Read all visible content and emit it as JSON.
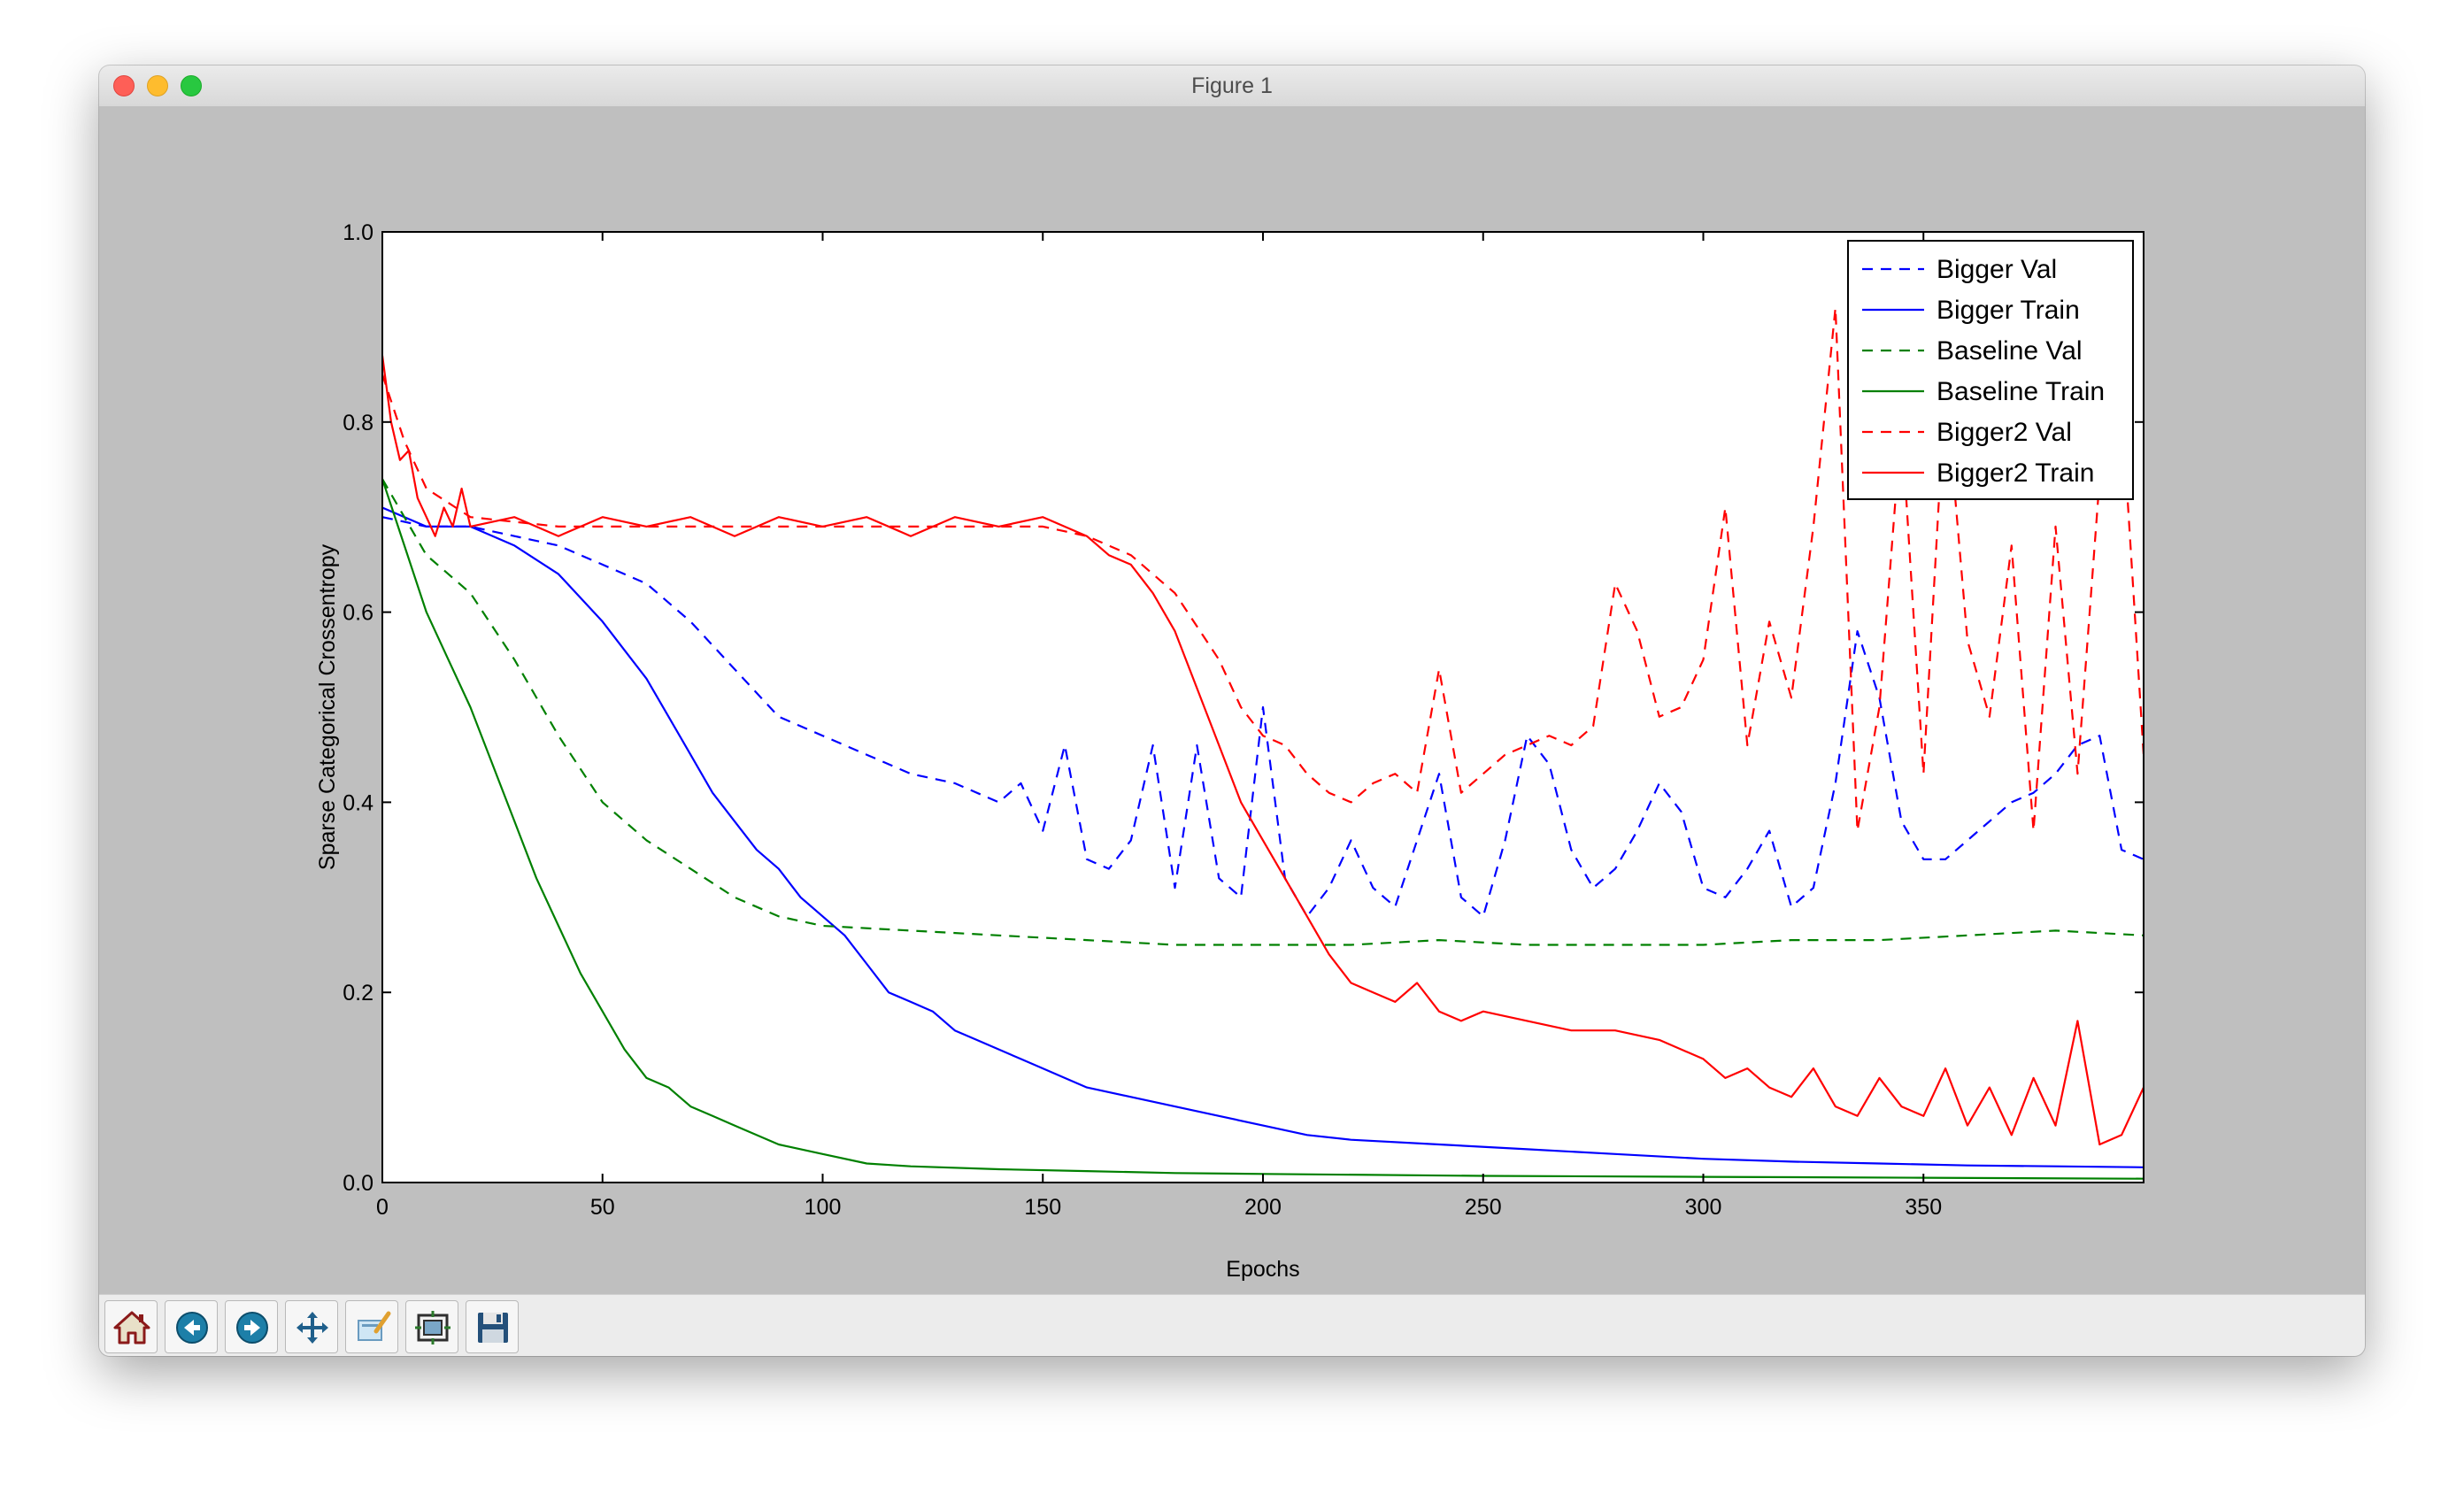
{
  "window": {
    "title": "Figure 1"
  },
  "toolbar": {
    "buttons": [
      {
        "name": "home-button",
        "icon": "home-icon"
      },
      {
        "name": "back-button",
        "icon": "back-arrow-icon"
      },
      {
        "name": "forward-button",
        "icon": "forward-arrow-icon"
      },
      {
        "name": "pan-button",
        "icon": "move-icon"
      },
      {
        "name": "zoom-button",
        "icon": "zoom-rect-icon"
      },
      {
        "name": "subplots-button",
        "icon": "subplots-icon"
      },
      {
        "name": "save-button",
        "icon": "floppy-disk-icon"
      }
    ]
  },
  "chart_data": {
    "type": "line",
    "title": "",
    "xlabel": "Epochs",
    "ylabel": "Sparse Categorical Crossentropy",
    "xlim": [
      0,
      400
    ],
    "ylim": [
      0,
      1.0
    ],
    "xticks": [
      0,
      50,
      100,
      150,
      200,
      250,
      300,
      350
    ],
    "xtick_labels": [
      "0",
      "50",
      "100",
      "150",
      "200",
      "250",
      "300",
      "350"
    ],
    "yticks": [
      0.0,
      0.2,
      0.4,
      0.6,
      0.8,
      1.0
    ],
    "ytick_labels": [
      "0.0",
      "0.2",
      "0.4",
      "0.6",
      "0.8",
      "1.0"
    ],
    "grid": false,
    "legend_position": "top-right",
    "series": [
      {
        "name": "Bigger Val",
        "color": "#0000ff",
        "style": "dashed",
        "x": [
          0,
          10,
          20,
          30,
          40,
          50,
          60,
          70,
          80,
          90,
          100,
          110,
          120,
          130,
          140,
          145,
          150,
          155,
          160,
          165,
          170,
          175,
          180,
          185,
          190,
          195,
          200,
          205,
          210,
          215,
          220,
          225,
          230,
          235,
          240,
          245,
          250,
          255,
          260,
          265,
          270,
          275,
          280,
          285,
          290,
          295,
          300,
          305,
          310,
          315,
          320,
          325,
          330,
          335,
          340,
          345,
          350,
          355,
          360,
          365,
          370,
          375,
          380,
          385,
          390,
          395,
          400
        ],
        "y": [
          0.7,
          0.69,
          0.69,
          0.68,
          0.67,
          0.65,
          0.63,
          0.59,
          0.54,
          0.49,
          0.47,
          0.45,
          0.43,
          0.42,
          0.4,
          0.42,
          0.37,
          0.46,
          0.34,
          0.33,
          0.36,
          0.46,
          0.31,
          0.46,
          0.32,
          0.3,
          0.5,
          0.32,
          0.28,
          0.31,
          0.36,
          0.31,
          0.29,
          0.36,
          0.43,
          0.3,
          0.28,
          0.36,
          0.47,
          0.44,
          0.35,
          0.31,
          0.33,
          0.37,
          0.42,
          0.39,
          0.31,
          0.3,
          0.33,
          0.37,
          0.29,
          0.31,
          0.42,
          0.58,
          0.51,
          0.38,
          0.34,
          0.34,
          0.36,
          0.38,
          0.4,
          0.41,
          0.43,
          0.46,
          0.47,
          0.35,
          0.34
        ]
      },
      {
        "name": "Bigger Train",
        "color": "#0000ff",
        "style": "solid",
        "x": [
          0,
          10,
          20,
          30,
          40,
          50,
          55,
          60,
          65,
          70,
          75,
          80,
          85,
          90,
          95,
          100,
          105,
          110,
          115,
          120,
          125,
          130,
          135,
          140,
          145,
          150,
          155,
          160,
          170,
          180,
          190,
          200,
          210,
          220,
          240,
          260,
          280,
          300,
          320,
          340,
          360,
          380,
          400
        ],
        "y": [
          0.71,
          0.69,
          0.69,
          0.67,
          0.64,
          0.59,
          0.56,
          0.53,
          0.49,
          0.45,
          0.41,
          0.38,
          0.35,
          0.33,
          0.3,
          0.28,
          0.26,
          0.23,
          0.2,
          0.19,
          0.18,
          0.16,
          0.15,
          0.14,
          0.13,
          0.12,
          0.11,
          0.1,
          0.09,
          0.08,
          0.07,
          0.06,
          0.05,
          0.045,
          0.04,
          0.035,
          0.03,
          0.025,
          0.022,
          0.02,
          0.018,
          0.017,
          0.016
        ]
      },
      {
        "name": "Baseline Val",
        "color": "#008000",
        "style": "dashed",
        "x": [
          0,
          10,
          20,
          30,
          40,
          50,
          60,
          70,
          80,
          90,
          100,
          120,
          140,
          160,
          180,
          200,
          220,
          240,
          260,
          280,
          300,
          320,
          340,
          360,
          380,
          400
        ],
        "y": [
          0.74,
          0.66,
          0.62,
          0.55,
          0.47,
          0.4,
          0.36,
          0.33,
          0.3,
          0.28,
          0.27,
          0.265,
          0.26,
          0.255,
          0.25,
          0.25,
          0.25,
          0.255,
          0.25,
          0.25,
          0.25,
          0.255,
          0.255,
          0.26,
          0.265,
          0.26
        ]
      },
      {
        "name": "Baseline Train",
        "color": "#008000",
        "style": "solid",
        "x": [
          0,
          5,
          10,
          15,
          20,
          25,
          30,
          35,
          40,
          45,
          50,
          55,
          60,
          65,
          70,
          75,
          80,
          90,
          100,
          110,
          120,
          140,
          160,
          180,
          200,
          250,
          300,
          350,
          400
        ],
        "y": [
          0.74,
          0.67,
          0.6,
          0.55,
          0.5,
          0.44,
          0.38,
          0.32,
          0.27,
          0.22,
          0.18,
          0.14,
          0.11,
          0.1,
          0.08,
          0.07,
          0.06,
          0.04,
          0.03,
          0.02,
          0.017,
          0.014,
          0.012,
          0.01,
          0.009,
          0.007,
          0.006,
          0.005,
          0.004
        ]
      },
      {
        "name": "Bigger2 Val",
        "color": "#ff0000",
        "style": "dashed",
        "x": [
          0,
          5,
          10,
          20,
          40,
          60,
          80,
          100,
          120,
          140,
          150,
          160,
          170,
          180,
          190,
          195,
          200,
          205,
          210,
          215,
          220,
          225,
          230,
          235,
          240,
          245,
          250,
          255,
          260,
          265,
          270,
          275,
          280,
          285,
          290,
          295,
          300,
          305,
          310,
          315,
          320,
          325,
          330,
          335,
          340,
          345,
          350,
          355,
          360,
          365,
          370,
          375,
          380,
          385,
          390,
          395,
          400
        ],
        "y": [
          0.85,
          0.78,
          0.73,
          0.7,
          0.69,
          0.69,
          0.69,
          0.69,
          0.69,
          0.69,
          0.69,
          0.68,
          0.66,
          0.62,
          0.55,
          0.5,
          0.47,
          0.46,
          0.43,
          0.41,
          0.4,
          0.42,
          0.43,
          0.41,
          0.54,
          0.41,
          0.43,
          0.45,
          0.46,
          0.47,
          0.46,
          0.48,
          0.63,
          0.58,
          0.49,
          0.5,
          0.55,
          0.71,
          0.46,
          0.59,
          0.51,
          0.69,
          0.92,
          0.37,
          0.5,
          0.8,
          0.43,
          0.84,
          0.57,
          0.49,
          0.67,
          0.37,
          0.69,
          0.43,
          0.74,
          0.82,
          0.45
        ]
      },
      {
        "name": "Bigger2 Train",
        "color": "#ff0000",
        "style": "solid",
        "x": [
          0,
          2,
          4,
          6,
          8,
          10,
          12,
          14,
          16,
          18,
          20,
          30,
          40,
          50,
          60,
          70,
          80,
          90,
          100,
          110,
          120,
          130,
          140,
          150,
          160,
          165,
          170,
          175,
          180,
          185,
          190,
          195,
          200,
          205,
          210,
          215,
          220,
          225,
          230,
          235,
          240,
          245,
          250,
          260,
          270,
          280,
          290,
          300,
          305,
          310,
          315,
          320,
          325,
          330,
          335,
          340,
          345,
          350,
          355,
          360,
          365,
          370,
          375,
          380,
          385,
          390,
          395,
          400
        ],
        "y": [
          0.87,
          0.8,
          0.76,
          0.77,
          0.72,
          0.7,
          0.68,
          0.71,
          0.69,
          0.73,
          0.69,
          0.7,
          0.68,
          0.7,
          0.69,
          0.7,
          0.68,
          0.7,
          0.69,
          0.7,
          0.68,
          0.7,
          0.69,
          0.7,
          0.68,
          0.66,
          0.65,
          0.62,
          0.58,
          0.52,
          0.46,
          0.4,
          0.36,
          0.32,
          0.28,
          0.24,
          0.21,
          0.2,
          0.19,
          0.21,
          0.18,
          0.17,
          0.18,
          0.17,
          0.16,
          0.16,
          0.15,
          0.13,
          0.11,
          0.12,
          0.1,
          0.09,
          0.12,
          0.08,
          0.07,
          0.11,
          0.08,
          0.07,
          0.12,
          0.06,
          0.1,
          0.05,
          0.11,
          0.06,
          0.17,
          0.04,
          0.05,
          0.1
        ]
      }
    ]
  }
}
